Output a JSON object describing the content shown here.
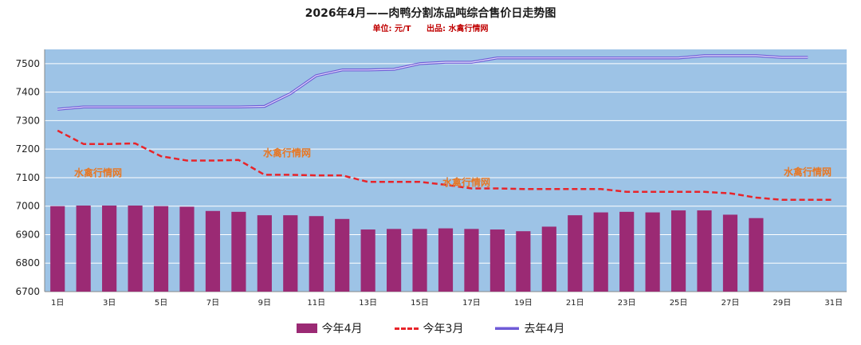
{
  "chart_data": {
    "type": "bar+line",
    "title": "2026年4月——肉鸭分割冻品吨综合售价日走势图",
    "subtitle_unit": "单位: 元/T",
    "subtitle_source": "出品: 水禽行情网",
    "watermark": "水禽行情网",
    "ylim": [
      6700,
      7550
    ],
    "yticks": [
      6700,
      6800,
      6900,
      7000,
      7100,
      7200,
      7300,
      7400,
      7500
    ],
    "days": 31,
    "xtick_labels": [
      "1日",
      "3日",
      "5日",
      "7日",
      "9日",
      "11日",
      "13日",
      "15日",
      "17日",
      "19日",
      "21日",
      "23日",
      "25日",
      "27日",
      "29日",
      "31日"
    ],
    "series": [
      {
        "name": "今年4月",
        "kind": "bar",
        "color": "#9b2a74",
        "values": [
          7000,
          7002,
          7002,
          7002,
          7000,
          6998,
          6983,
          6980,
          6968,
          6968,
          6965,
          6955,
          6918,
          6920,
          6920,
          6922,
          6920,
          6918,
          6912,
          6928,
          6968,
          6978,
          6980,
          6978,
          6985,
          6985,
          6970,
          6958,
          null,
          null,
          null
        ]
      },
      {
        "name": "今年3月",
        "kind": "dashed-line",
        "color": "#e8242a",
        "values": [
          7265,
          7218,
          7218,
          7220,
          7175,
          7160,
          7160,
          7162,
          7110,
          7110,
          7108,
          7108,
          7085,
          7085,
          7085,
          7075,
          7062,
          7062,
          7060,
          7060,
          7060,
          7060,
          7050,
          7050,
          7050,
          7050,
          7045,
          7030,
          7022,
          7022,
          7022
        ]
      },
      {
        "name": "去年4月",
        "kind": "line",
        "color": "#6e5bd6",
        "values": [
          7340,
          7348,
          7348,
          7348,
          7348,
          7348,
          7348,
          7348,
          7350,
          7395,
          7458,
          7478,
          7478,
          7480,
          7500,
          7505,
          7505,
          7520,
          7520,
          7520,
          7520,
          7520,
          7520,
          7520,
          7520,
          7528,
          7528,
          7528,
          7522,
          7522,
          null
        ]
      }
    ]
  }
}
